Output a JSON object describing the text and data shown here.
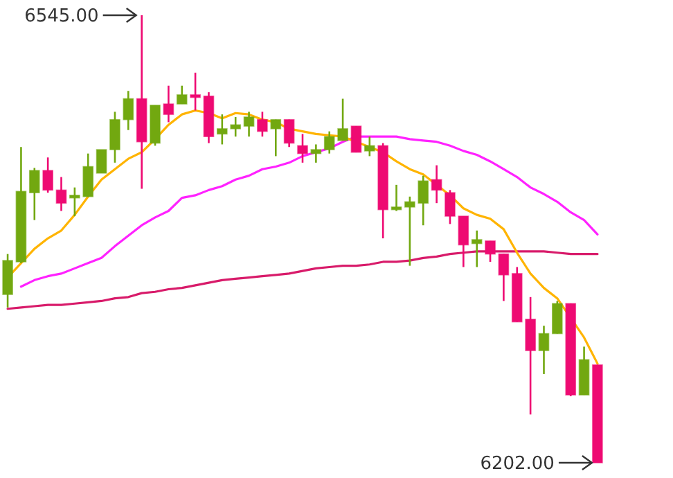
{
  "chart_data": {
    "type": "candlestick",
    "categories": [
      null,
      null,
      null,
      null,
      null,
      null,
      null,
      null,
      null,
      null,
      null,
      null,
      null,
      null,
      null,
      null,
      null,
      null,
      null,
      null,
      null,
      null,
      null,
      null,
      null,
      null,
      null,
      null,
      null,
      null,
      null,
      null,
      null,
      null,
      null,
      null,
      null,
      null,
      null,
      null,
      null,
      null,
      null,
      null,
      null
    ],
    "ohlc": [
      [
        6331,
        6362,
        6321,
        6357
      ],
      [
        6356,
        6444,
        6355,
        6410
      ],
      [
        6409,
        6428,
        6388,
        6426
      ],
      [
        6426,
        6436,
        6409,
        6411
      ],
      [
        6411,
        6421,
        6395,
        6401
      ],
      [
        6405,
        6413,
        6391,
        6407
      ],
      [
        6406,
        6439,
        6406,
        6429
      ],
      [
        6424,
        6442,
        6424,
        6442
      ],
      [
        6442,
        6471,
        6432,
        6465
      ],
      [
        6465,
        6487,
        6457,
        6481
      ],
      [
        6481,
        6545,
        6412,
        6448
      ],
      [
        6447,
        6476,
        6445,
        6476
      ],
      [
        6477,
        6491,
        6463,
        6469
      ],
      [
        6477,
        6491,
        6477,
        6484
      ],
      [
        6484,
        6501,
        6472,
        6482
      ],
      [
        6483,
        6486,
        6447,
        6452
      ],
      [
        6454,
        6469,
        6446,
        6458
      ],
      [
        6458,
        6467,
        6452,
        6461
      ],
      [
        6460,
        6471,
        6452,
        6467
      ],
      [
        6465,
        6471,
        6452,
        6456
      ],
      [
        6458,
        6465,
        6437,
        6465
      ],
      [
        6465,
        6465,
        6444,
        6447
      ],
      [
        6445,
        6454,
        6432,
        6439
      ],
      [
        6439,
        6446,
        6432,
        6442
      ],
      [
        6442,
        6456,
        6439,
        6452
      ],
      [
        6449,
        6481,
        6449,
        6458
      ],
      [
        6460,
        6460,
        6440,
        6440
      ],
      [
        6441,
        6452,
        6437,
        6445
      ],
      [
        6445,
        6447,
        6374,
        6396
      ],
      [
        6396,
        6415,
        6395,
        6398
      ],
      [
        6398,
        6406,
        6353,
        6402
      ],
      [
        6401,
        6422,
        6384,
        6418
      ],
      [
        6419,
        6430,
        6401,
        6411
      ],
      [
        6409,
        6411,
        6385,
        6391
      ],
      [
        6391,
        6391,
        6352,
        6369
      ],
      [
        6370,
        6380,
        6352,
        6373
      ],
      [
        6372,
        6372,
        6356,
        6362
      ],
      [
        6362,
        6362,
        6326,
        6346
      ],
      [
        6347,
        6352,
        6310,
        6310
      ],
      [
        6312,
        6329,
        6239,
        6288
      ],
      [
        6288,
        6307,
        6270,
        6301
      ],
      [
        6301,
        6326,
        6301,
        6324
      ],
      [
        6324,
        6324,
        6253,
        6254
      ],
      [
        6254,
        6291,
        6254,
        6281
      ],
      [
        6277,
        6277,
        6202,
        6202
      ]
    ],
    "colors": [
      "#72a810",
      "#72a810",
      "#72a810",
      "#ee0a72",
      "#ee0a72",
      "#72a810",
      "#72a810",
      "#72a810",
      "#72a810",
      "#72a810",
      "#ee0a72",
      "#72a810",
      "#ee0a72",
      "#72a810",
      "#ee0a72",
      "#ee0a72",
      "#72a810",
      "#72a810",
      "#72a810",
      "#ee0a72",
      "#72a810",
      "#ee0a72",
      "#ee0a72",
      "#72a810",
      "#72a810",
      "#72a810",
      "#ee0a72",
      "#72a810",
      "#ee0a72",
      "#72a810",
      "#72a810",
      "#72a810",
      "#ee0a72",
      "#ee0a72",
      "#ee0a72",
      "#72a810",
      "#ee0a72",
      "#ee0a72",
      "#ee0a72",
      "#ee0a72",
      "#72a810",
      "#72a810",
      "#ee0a72",
      "#72a810",
      "#ee0a72"
    ],
    "series": [
      {
        "type": "line",
        "color": "#d81b6a",
        "values": [
          6320,
          6321,
          6322,
          6323,
          6323,
          6324,
          6325,
          6326,
          6328,
          6329,
          6332,
          6333,
          6335,
          6336,
          6338,
          6340,
          6342,
          6343,
          6344,
          6345,
          6346,
          6347,
          6349,
          6351,
          6352,
          6353,
          6353,
          6354,
          6356,
          6356,
          6357,
          6359,
          6360,
          6362,
          6363,
          6364,
          6364,
          6364,
          6364,
          6364,
          6364,
          6363,
          6362,
          6362,
          6362
        ]
      },
      {
        "type": "line",
        "color": "#ff22ff",
        "values": [
          null,
          6337,
          6342,
          6345,
          6347,
          6351,
          6355,
          6359,
          6368,
          6376,
          6384,
          6390,
          6395,
          6405,
          6407,
          6411,
          6414,
          6419,
          6422,
          6427,
          6429,
          6432,
          6437,
          6440,
          6443,
          6448,
          6452,
          6452,
          6452,
          6452,
          6450,
          6449,
          6448,
          6445,
          6441,
          6438,
          6433,
          6427,
          6421,
          6413,
          6408,
          6402,
          6394,
          6388,
          6377
        ]
      },
      {
        "type": "line",
        "color": "#ffb400",
        "values": [
          6344,
          6355,
          6366,
          6374,
          6380,
          6392,
          6406,
          6419,
          6427,
          6435,
          6440,
          6450,
          6461,
          6469,
          6472,
          6470,
          6466,
          6470,
          6469,
          6465,
          6463,
          6458,
          6456,
          6454,
          6453,
          6452,
          6448,
          6444,
          6440,
          6433,
          6427,
          6423,
          6415,
          6407,
          6397,
          6392,
          6389,
          6381,
          6363,
          6347,
          6336,
          6328,
          null,
          6298,
          6278
        ]
      }
    ],
    "annotations": [
      "6545.00",
      "6202.00"
    ]
  }
}
